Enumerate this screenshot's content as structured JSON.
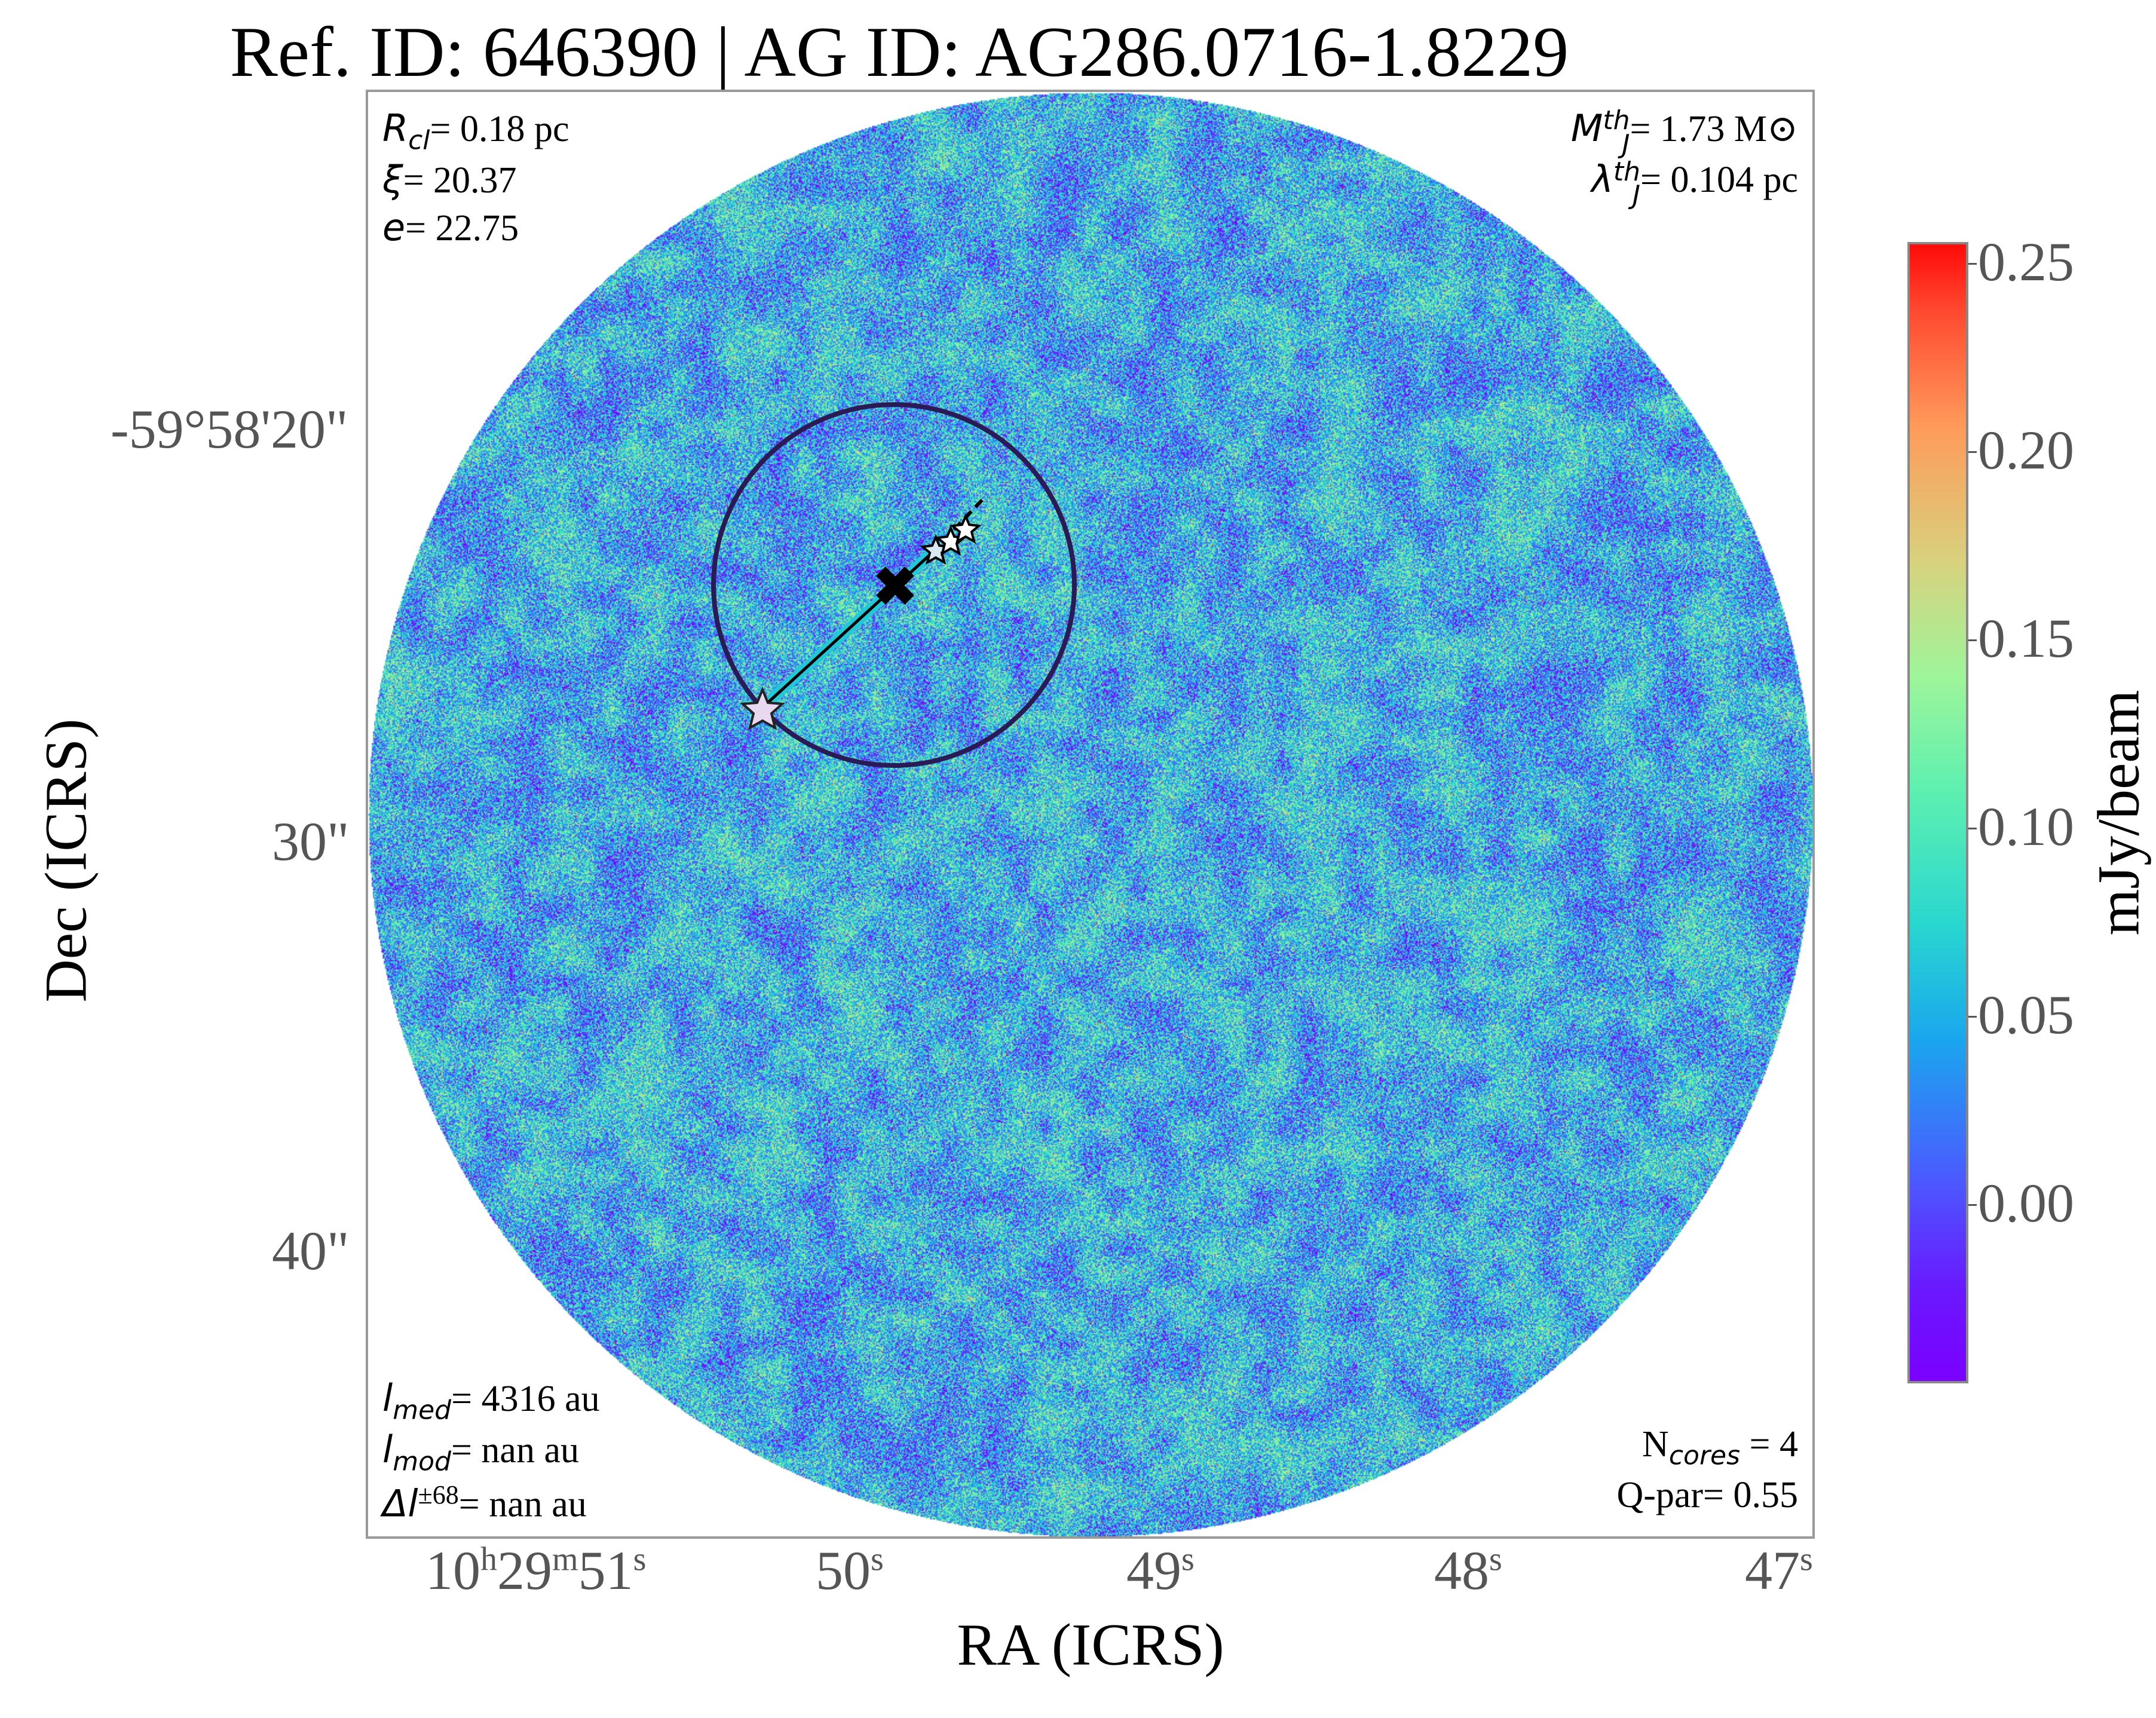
{
  "title": "Ref. ID: 646390 | AG ID: AG286.0716-1.8229",
  "annotations": {
    "top_left": [
      {
        "sym": "R",
        "sub": "cl",
        "val": "= 0.18 pc"
      },
      {
        "sym": "ξ",
        "val": "= 20.37"
      },
      {
        "sym": "e",
        "val": "= 22.75"
      }
    ],
    "top_right": [
      {
        "sym": "M",
        "sub": "J",
        "sup": "th",
        "val": "= 1.73 M⊙"
      },
      {
        "sym": "λ",
        "sub": "J",
        "sup": "th",
        "val": "= 0.104 pc"
      }
    ],
    "bottom_left": [
      {
        "sym": "l",
        "sub": "med",
        "val": "= 4316 au"
      },
      {
        "sym": "l",
        "sub": "mod",
        "val": "= nan au"
      },
      {
        "sym": "Δl",
        "sup": "±68",
        "val": "= nan au"
      }
    ],
    "bottom_right": [
      {
        "pre": "N",
        "sub": "cores",
        "val": " = 4"
      },
      {
        "pre": "Q-par",
        "val": "= 0.55"
      }
    ]
  },
  "axes": {
    "xlabel": "RA (ICRS)",
    "ylabel": "Dec (ICRS)",
    "x_ticks": [
      {
        "h": "10",
        "m": "29",
        "s": "51"
      },
      {
        "s": "50"
      },
      {
        "s": "49"
      },
      {
        "s": "48"
      },
      {
        "s": "47"
      }
    ],
    "y_ticks": [
      "-59°58'20\"",
      "30\"",
      "40\""
    ]
  },
  "colorbar": {
    "label": "mJy/beam",
    "ticks": [
      "0.25",
      "0.20",
      "0.15",
      "0.10",
      "0.05",
      "0.00"
    ],
    "range": [
      -0.05,
      0.25
    ],
    "colormap": "rainbow"
  },
  "map": {
    "colormap_colors": [
      "#7b00ff",
      "#4a5cff",
      "#1aa6ee",
      "#28d6d0",
      "#5ef0b0",
      "#9ef59a",
      "#d8d27e",
      "#ff9a5a",
      "#ff4a30",
      "#ff0a0a"
    ],
    "cores": 4,
    "circle_color": "#2a1a55",
    "cluster_marker": "x-marker",
    "core_marker": "star"
  }
}
